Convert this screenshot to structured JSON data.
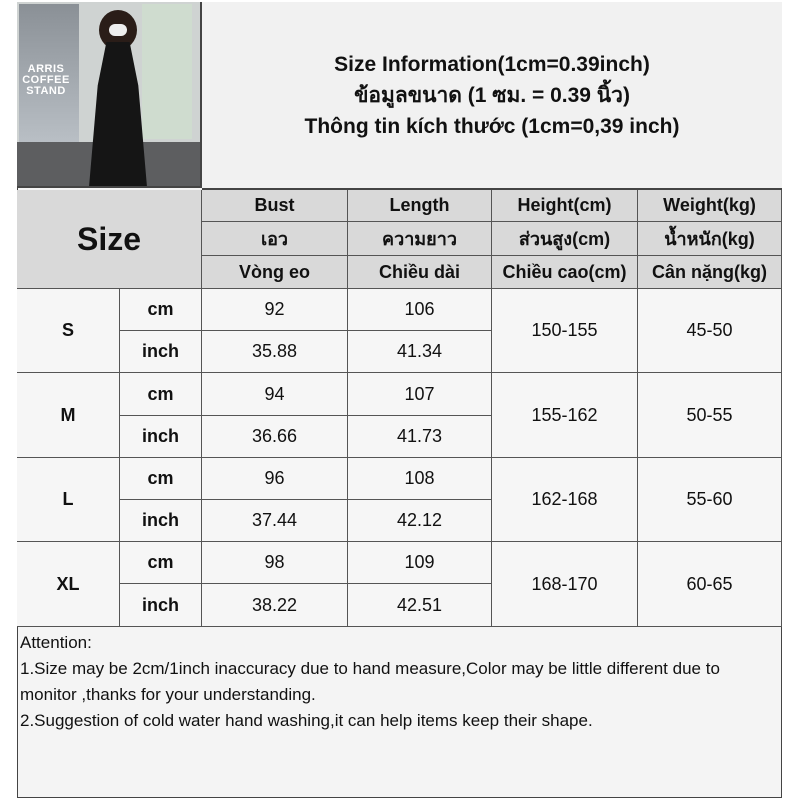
{
  "title": {
    "line1": "Size Information(1cm=0.39inch)",
    "line2": "ข้อมูลขนาด (1 ซม. = 0.39 นิ้ว)",
    "line3": "Thông tin kích thước (1cm=0,39 inch)"
  },
  "photo": {
    "sign_text": "ARRIS COFFEE STAND"
  },
  "table": {
    "size_label": "Size",
    "headers": [
      [
        "Bust",
        "Length",
        "Height(cm)",
        "Weight(kg)"
      ],
      [
        "เอว",
        "ความยาว",
        "ส่วนสูง(cm)",
        "น้ำหนัก(kg)"
      ],
      [
        "Vòng eo",
        "Chiều dài",
        "Chiều cao(cm)",
        "Cân nặng(kg)"
      ]
    ],
    "rows": [
      {
        "size": "S",
        "cm_label": "cm",
        "inch_label": "inch",
        "bust_cm": "92",
        "bust_inch": "35.88",
        "length_cm": "106",
        "length_inch": "41.34",
        "height": "150-155",
        "weight": "45-50"
      },
      {
        "size": "M",
        "cm_label": "cm",
        "inch_label": "inch",
        "bust_cm": "94",
        "bust_inch": "36.66",
        "length_cm": "107",
        "length_inch": "41.73",
        "height": "155-162",
        "weight": "50-55"
      },
      {
        "size": "L",
        "cm_label": "cm",
        "inch_label": "inch",
        "bust_cm": "96",
        "bust_inch": "37.44",
        "length_cm": "108",
        "length_inch": "42.12",
        "height": "162-168",
        "weight": "55-60"
      },
      {
        "size": "XL",
        "cm_label": "cm",
        "inch_label": "inch",
        "bust_cm": "98",
        "bust_inch": "38.22",
        "length_cm": "109",
        "length_inch": "42.51",
        "height": "168-170",
        "weight": "60-65"
      }
    ]
  },
  "notes": {
    "heading": "Attention:",
    "items": [
      "1.Size may be 2cm/1inch inaccuracy due to hand measure,Color may be little different due to monitor ,thanks for your understanding.",
      "2.Suggestion of cold water hand washing,it can help items keep their shape."
    ]
  }
}
